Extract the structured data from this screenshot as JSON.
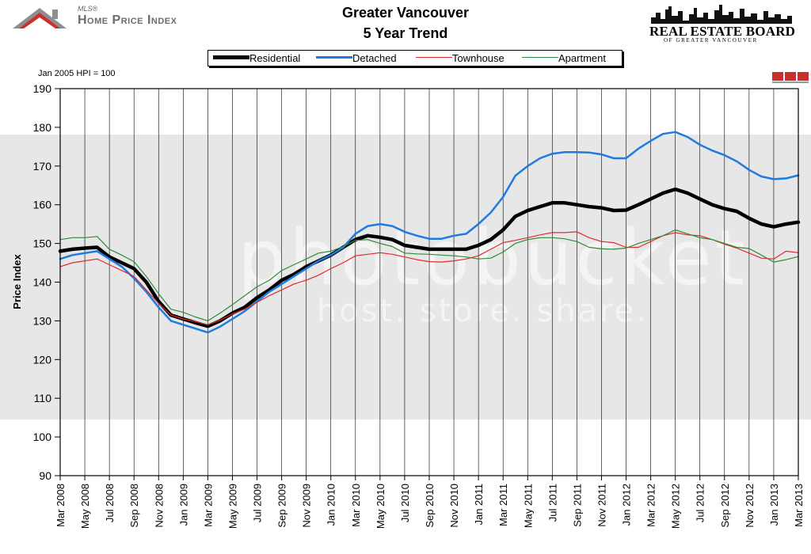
{
  "header": {
    "mls_label": "MLS®",
    "hpi_label": "Home Price Index",
    "title_line1": "Greater Vancouver",
    "title_line2": "5 Year Trend",
    "board_name": "REAL ESTATE BOARD",
    "board_sub": "OF GREATER VANCOUVER"
  },
  "baseline_note": "Jan 2005 HPI = 100",
  "watermark": {
    "line1": "photobucket",
    "line2": "host. store. share."
  },
  "colors": {
    "residential": "#000000",
    "detached": "#1f7be0",
    "townhouse": "#e02b2b",
    "apartment": "#2e8b3a",
    "grid": "#000000"
  },
  "chart_data": {
    "type": "line",
    "title": "Greater Vancouver 5 Year Trend",
    "xlabel": "",
    "ylabel": "Price Index",
    "ylim": [
      90,
      190
    ],
    "yticks": [
      90,
      100,
      110,
      120,
      130,
      140,
      150,
      160,
      170,
      180,
      190
    ],
    "grid": "vertical lines at every x tick",
    "legend_position": "top-center",
    "x_tick_labels": [
      "Mar 2008",
      "May 2008",
      "Jul 2008",
      "Sep 2008",
      "Nov 2008",
      "Jan 2009",
      "Mar 2009",
      "May 2009",
      "Jul 2009",
      "Sep 2009",
      "Nov 2009",
      "Jan 2010",
      "Mar 2010",
      "May 2010",
      "Jul 2010",
      "Sep 2010",
      "Nov 2010",
      "Jan 2011",
      "Mar 2011",
      "May 2011",
      "Jul 2011",
      "Sep 2011",
      "Nov 2011",
      "Jan 2012",
      "Mar 2012",
      "May 2012",
      "Jul 2012",
      "Sep 2012",
      "Nov 2012",
      "Jan 2013",
      "Mar 2013"
    ],
    "x": [
      "Mar 2008",
      "Apr 2008",
      "May 2008",
      "Jun 2008",
      "Jul 2008",
      "Aug 2008",
      "Sep 2008",
      "Oct 2008",
      "Nov 2008",
      "Dec 2008",
      "Jan 2009",
      "Feb 2009",
      "Mar 2009",
      "Apr 2009",
      "May 2009",
      "Jun 2009",
      "Jul 2009",
      "Aug 2009",
      "Sep 2009",
      "Oct 2009",
      "Nov 2009",
      "Dec 2009",
      "Jan 2010",
      "Feb 2010",
      "Mar 2010",
      "Apr 2010",
      "May 2010",
      "Jun 2010",
      "Jul 2010",
      "Aug 2010",
      "Sep 2010",
      "Oct 2010",
      "Nov 2010",
      "Dec 2010",
      "Jan 2011",
      "Feb 2011",
      "Mar 2011",
      "Apr 2011",
      "May 2011",
      "Jun 2011",
      "Jul 2011",
      "Aug 2011",
      "Sep 2011",
      "Oct 2011",
      "Nov 2011",
      "Dec 2011",
      "Jan 2012",
      "Feb 2012",
      "Mar 2012",
      "Apr 2012",
      "May 2012",
      "Jun 2012",
      "Jul 2012",
      "Aug 2012",
      "Sep 2012",
      "Oct 2012",
      "Nov 2012",
      "Dec 2012",
      "Jan 2013",
      "Feb 2013",
      "Mar 2013"
    ],
    "series": [
      {
        "name": "Residential",
        "key": "residential",
        "width": 4.5,
        "values": [
          148,
          148.5,
          148.8,
          149,
          146.5,
          145,
          143.5,
          140,
          135,
          131.5,
          130.5,
          129.5,
          128.6,
          130,
          132,
          133.5,
          136,
          138,
          140.5,
          142,
          144,
          145.5,
          147,
          149,
          151,
          152,
          151.6,
          151,
          149.5,
          149,
          148.5,
          148.5,
          148.5,
          148.5,
          149.5,
          151,
          153.5,
          157,
          158.5,
          159.5,
          160.5,
          160.5,
          160,
          159.5,
          159.2,
          158.5,
          158.6,
          160,
          161.5,
          163,
          164,
          163,
          161.5,
          160,
          159,
          158.3,
          156.5,
          155,
          154.3,
          155,
          155.5
        ]
      },
      {
        "name": "Detached",
        "key": "detached",
        "width": 2.5,
        "values": [
          146,
          147,
          147.5,
          148,
          146,
          144,
          141,
          137.5,
          133.5,
          130,
          129,
          128,
          127,
          128.5,
          130.5,
          132.5,
          135,
          137.5,
          139.5,
          141.5,
          143.5,
          145.5,
          147,
          149,
          152.5,
          154.5,
          155,
          154.5,
          153,
          152,
          151.2,
          151.2,
          152,
          152.5,
          155,
          158,
          162,
          167.5,
          170,
          172,
          173.2,
          173.6,
          173.6,
          173.5,
          173,
          172,
          172,
          174.5,
          176.5,
          178.3,
          178.8,
          177.5,
          175.5,
          174,
          172.8,
          171.2,
          169,
          167.3,
          166.6,
          166.8,
          167.6
        ]
      },
      {
        "name": "Townhouse",
        "key": "townhouse",
        "width": 1.2,
        "values": [
          144,
          145,
          145.5,
          146,
          144.5,
          143,
          141.5,
          138,
          134.5,
          131.5,
          130.5,
          129.8,
          129,
          130.2,
          131.8,
          133,
          134.8,
          136.5,
          138,
          139.5,
          140.5,
          141.8,
          143.5,
          145,
          146.8,
          147.2,
          147.6,
          147.2,
          146.5,
          145.8,
          145.3,
          145.2,
          145.5,
          146,
          146.8,
          148.5,
          150.2,
          150.8,
          151.5,
          152.2,
          152.8,
          152.8,
          153,
          151.5,
          150.5,
          150.2,
          149,
          149,
          150.5,
          152,
          152.8,
          152.2,
          152,
          151,
          149.8,
          148.8,
          147.5,
          146.2,
          146,
          148,
          147.6
        ]
      },
      {
        "name": "Apartment",
        "key": "apartment",
        "width": 1.2,
        "values": [
          151,
          151.5,
          151.5,
          151.8,
          148.5,
          147,
          145.3,
          141.5,
          137,
          133,
          132.2,
          131,
          130,
          132,
          134.2,
          136.5,
          138.8,
          140.5,
          143,
          144.5,
          146,
          147.5,
          148,
          149.2,
          150.8,
          151,
          150,
          149.2,
          147.5,
          147.3,
          147.2,
          147,
          146.8,
          146.5,
          146,
          146.2,
          147.8,
          150,
          151,
          151.5,
          151.5,
          151.2,
          150.5,
          149,
          148.6,
          148.5,
          148.8,
          150,
          151,
          152,
          153.5,
          152.5,
          151.5,
          151,
          150,
          149,
          148.7,
          147,
          145.2,
          145.8,
          146.6
        ]
      }
    ]
  }
}
